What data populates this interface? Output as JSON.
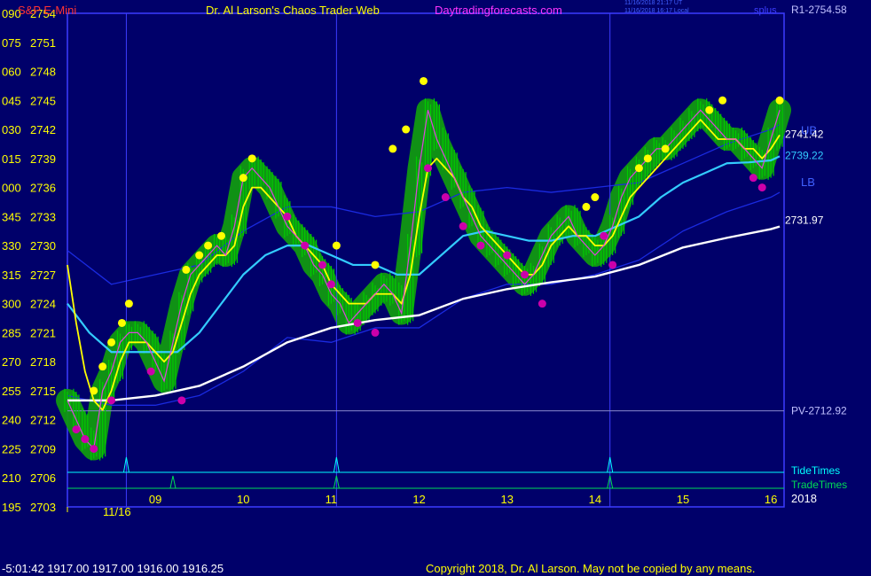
{
  "header": {
    "instrument": "S&P E-Mini",
    "site_title": "Dr. Al Larson's Chaos Trader Web",
    "site_url": "Daytradingforecasts.com",
    "timestamp_ut": "11/16/2018 21:17 UT",
    "timestamp_local": "11/16/2018 16:17 Local",
    "symbol_code": "splus"
  },
  "footer": {
    "status": "-5:01:42  1917.00 1917.00 1916.00 1916.25",
    "copyright": "Copyright 2018, Dr. Al Larson. May not be copied by any means."
  },
  "colors": {
    "background": "#00006a",
    "frame": "#3c3cff",
    "candles": "#00cc00",
    "glow": "#119911",
    "fast_avg": "#ffff00",
    "mid_avg": "#33ccff",
    "slow_avg": "#ffffff",
    "band": "#1a2ae0",
    "highs": "#ffff00",
    "lows": "#cc00aa",
    "tide": "#00ffff",
    "trade": "#00dd55"
  },
  "chart_data": {
    "type": "line",
    "ylim": [
      2703,
      2754
    ],
    "y_ticks": [
      {
        "left": "195",
        "right": "2703",
        "v": 2703
      },
      {
        "left": "210",
        "right": "2706",
        "v": 2706
      },
      {
        "left": "225",
        "right": "2709",
        "v": 2709
      },
      {
        "left": "240",
        "right": "2712",
        "v": 2712
      },
      {
        "left": "255",
        "right": "2715",
        "v": 2715
      },
      {
        "left": "270",
        "right": "2718",
        "v": 2718
      },
      {
        "left": "285",
        "right": "2721",
        "v": 2721
      },
      {
        "left": "300",
        "right": "2724",
        "v": 2724
      },
      {
        "left": "315",
        "right": "2727",
        "v": 2727
      },
      {
        "left": "330",
        "right": "2730",
        "v": 2730
      },
      {
        "left": "345",
        "right": "2733",
        "v": 2733
      },
      {
        "left": "000",
        "right": "2736",
        "v": 2736
      },
      {
        "left": "015",
        "right": "2739",
        "v": 2739
      },
      {
        "left": "030",
        "right": "2742",
        "v": 2742
      },
      {
        "left": "045",
        "right": "2745",
        "v": 2745
      },
      {
        "left": "060",
        "right": "2748",
        "v": 2748
      },
      {
        "left": "075",
        "right": "2751",
        "v": 2751
      },
      {
        "left": "090",
        "right": "2754",
        "v": 2754
      }
    ],
    "xlim": [
      8.0,
      16.15
    ],
    "x_ticks": [
      "09",
      "10",
      "11",
      "12",
      "13",
      "14",
      "15",
      "16"
    ],
    "date_label": "11/16",
    "year_label": "2018",
    "session_lines": [
      8.67,
      11.06,
      14.17
    ],
    "levels": {
      "r1": {
        "label": "R1-2754.58",
        "value": 2754.58
      },
      "pv": {
        "label": "PV-2712.92",
        "value": 2712.92
      },
      "ub": "UB",
      "lb": "LB"
    },
    "last_values": {
      "fast": "2741.42",
      "mid": "2739.22",
      "slow": "2731.97"
    },
    "tide_label": "TideTimes",
    "trade_label": "TradeTimes",
    "tide_spikes": [
      8.67,
      11.06,
      14.17
    ],
    "trade_spikes": [
      9.2,
      11.06,
      14.17
    ],
    "price": {
      "x": [
        8.0,
        8.1,
        8.2,
        8.3,
        8.4,
        8.5,
        8.6,
        8.7,
        8.8,
        8.9,
        9.0,
        9.1,
        9.2,
        9.3,
        9.4,
        9.5,
        9.6,
        9.7,
        9.8,
        9.9,
        10.0,
        10.1,
        10.2,
        10.3,
        10.4,
        10.5,
        10.6,
        10.7,
        10.8,
        10.9,
        11.0,
        11.1,
        11.2,
        11.3,
        11.4,
        11.5,
        11.6,
        11.7,
        11.8,
        11.9,
        12.0,
        12.1,
        12.2,
        12.3,
        12.4,
        12.5,
        12.6,
        12.7,
        12.8,
        12.9,
        13.0,
        13.1,
        13.2,
        13.3,
        13.4,
        13.5,
        13.6,
        13.7,
        13.8,
        13.9,
        14.0,
        14.1,
        14.2,
        14.3,
        14.4,
        14.5,
        14.6,
        14.7,
        14.8,
        14.9,
        15.0,
        15.1,
        15.2,
        15.3,
        15.4,
        15.5,
        15.6,
        15.7,
        15.8,
        15.9,
        16.0,
        16.1
      ],
      "y": [
        2714,
        2712,
        2710,
        2709,
        2715,
        2717,
        2720,
        2721,
        2721,
        2720,
        2718,
        2716,
        2720,
        2724,
        2727,
        2728,
        2729,
        2730,
        2729,
        2732,
        2737,
        2738,
        2737,
        2736,
        2734,
        2732,
        2731,
        2730,
        2728,
        2727,
        2725,
        2724,
        2722,
        2723,
        2724,
        2725,
        2726,
        2725,
        2723,
        2730,
        2738,
        2744,
        2741,
        2739,
        2737,
        2735,
        2733,
        2731,
        2730,
        2729,
        2728,
        2727,
        2726,
        2727,
        2729,
        2731,
        2732,
        2733,
        2731,
        2730,
        2729,
        2730,
        2732,
        2735,
        2737,
        2738,
        2739,
        2740,
        2740,
        2741,
        2742,
        2743,
        2744,
        2743,
        2742,
        2741,
        2741,
        2740,
        2739,
        2738,
        2741,
        2744
      ]
    },
    "series": [
      {
        "key": "fast",
        "x": [
          8.0,
          8.1,
          8.2,
          8.3,
          8.4,
          8.5,
          8.6,
          8.7,
          8.8,
          8.9,
          9.0,
          9.1,
          9.2,
          9.3,
          9.4,
          9.5,
          9.6,
          9.7,
          9.8,
          9.9,
          10.0,
          10.1,
          10.2,
          10.3,
          10.4,
          10.5,
          10.6,
          10.7,
          10.8,
          10.9,
          11.0,
          11.1,
          11.2,
          11.3,
          11.4,
          11.5,
          11.6,
          11.7,
          11.8,
          11.9,
          12.0,
          12.1,
          12.2,
          12.3,
          12.4,
          12.5,
          12.6,
          12.7,
          12.8,
          12.9,
          13.0,
          13.1,
          13.2,
          13.3,
          13.4,
          13.5,
          13.6,
          13.7,
          13.8,
          13.9,
          14.0,
          14.1,
          14.2,
          14.3,
          14.4,
          14.5,
          14.6,
          14.7,
          14.8,
          14.9,
          15.0,
          15.1,
          15.2,
          15.3,
          15.4,
          15.5,
          15.6,
          15.7,
          15.8,
          15.9,
          16.0,
          16.1
        ],
        "y": [
          2728,
          2722,
          2717,
          2714,
          2713,
          2715,
          2718,
          2720,
          2720,
          2720,
          2719,
          2718,
          2719,
          2722,
          2725,
          2727,
          2728,
          2729,
          2729,
          2730,
          2734,
          2736,
          2736,
          2735,
          2734,
          2733,
          2731,
          2730,
          2729,
          2728,
          2726,
          2725,
          2724,
          2724,
          2724,
          2725,
          2725,
          2725,
          2724,
          2727,
          2733,
          2738,
          2739,
          2738,
          2737,
          2735,
          2734,
          2732,
          2731,
          2730,
          2729,
          2728,
          2727,
          2727,
          2728,
          2730,
          2731,
          2732,
          2731,
          2731,
          2730,
          2730,
          2731,
          2733,
          2735,
          2736,
          2737,
          2738,
          2739,
          2740,
          2741,
          2742,
          2743,
          2742,
          2741,
          2741,
          2741,
          2740,
          2740,
          2739,
          2740,
          2741.42
        ]
      },
      {
        "key": "mid",
        "x": [
          8.0,
          8.25,
          8.5,
          8.75,
          9.0,
          9.25,
          9.5,
          9.75,
          10.0,
          10.25,
          10.5,
          10.75,
          11.0,
          11.25,
          11.5,
          11.75,
          12.0,
          12.25,
          12.5,
          12.75,
          13.0,
          13.25,
          13.5,
          13.75,
          14.0,
          14.25,
          14.5,
          14.75,
          15.0,
          15.25,
          15.5,
          15.75,
          16.0,
          16.1
        ],
        "y": [
          2724,
          2721,
          2719,
          2719,
          2719,
          2719,
          2721,
          2724,
          2727,
          2729,
          2730,
          2730,
          2729,
          2728,
          2728,
          2727,
          2727,
          2729,
          2731,
          2731.5,
          2731,
          2730.5,
          2730.5,
          2731,
          2731,
          2732,
          2733,
          2735,
          2736.5,
          2737.5,
          2738.5,
          2738.6,
          2738.8,
          2739.22
        ]
      },
      {
        "key": "slow",
        "x": [
          8.0,
          8.5,
          9.0,
          9.5,
          10.0,
          10.5,
          11.0,
          11.5,
          12.0,
          12.5,
          13.0,
          13.5,
          14.0,
          14.5,
          15.0,
          15.5,
          16.0,
          16.1
        ],
        "y": [
          2714,
          2714,
          2714.5,
          2715.5,
          2717.5,
          2720,
          2721.5,
          2722.3,
          2722.8,
          2724.5,
          2725.5,
          2726.2,
          2726.8,
          2728,
          2729.8,
          2730.8,
          2731.7,
          2731.97
        ]
      },
      {
        "key": "ub",
        "x": [
          8.0,
          8.5,
          9.0,
          9.5,
          10.0,
          10.5,
          11.0,
          11.5,
          12.0,
          12.5,
          13.0,
          13.5,
          14.0,
          14.5,
          15.0,
          15.5,
          16.0,
          16.1
        ],
        "y": [
          2729.5,
          2726,
          2727,
          2728,
          2731.5,
          2734,
          2734,
          2733,
          2733.5,
          2735.5,
          2736,
          2735.5,
          2736,
          2736.5,
          2738.5,
          2740.5,
          2742,
          2742.5
        ]
      },
      {
        "key": "lb",
        "x": [
          8.0,
          8.5,
          9.0,
          9.5,
          10.0,
          10.5,
          11.0,
          11.5,
          12.0,
          12.5,
          13.0,
          13.5,
          14.0,
          14.5,
          15.0,
          15.5,
          16.0,
          16.1
        ],
        "y": [
          2714.5,
          2713.5,
          2713.5,
          2714.5,
          2717,
          2720.5,
          2720,
          2721.5,
          2721.5,
          2724.5,
          2726,
          2726,
          2727,
          2728.5,
          2731.5,
          2733.5,
          2735,
          2735.5
        ]
      }
    ],
    "highs": [
      [
        8.3,
        2715
      ],
      [
        8.4,
        2717.5
      ],
      [
        8.5,
        2720
      ],
      [
        8.62,
        2722
      ],
      [
        8.7,
        2724
      ],
      [
        9.35,
        2727.5
      ],
      [
        9.5,
        2729
      ],
      [
        9.6,
        2730
      ],
      [
        9.75,
        2731
      ],
      [
        10.0,
        2737
      ],
      [
        10.1,
        2739
      ],
      [
        11.06,
        2730
      ],
      [
        11.5,
        2728
      ],
      [
        11.7,
        2740
      ],
      [
        11.85,
        2742
      ],
      [
        12.05,
        2747
      ],
      [
        13.9,
        2734
      ],
      [
        14.0,
        2735
      ],
      [
        14.5,
        2738
      ],
      [
        14.6,
        2739
      ],
      [
        14.8,
        2740
      ],
      [
        15.3,
        2744
      ],
      [
        15.45,
        2745
      ],
      [
        16.1,
        2745
      ]
    ],
    "lows": [
      [
        8.1,
        2711
      ],
      [
        8.2,
        2710
      ],
      [
        8.3,
        2709
      ],
      [
        8.5,
        2714
      ],
      [
        8.95,
        2717
      ],
      [
        9.3,
        2714
      ],
      [
        10.5,
        2733
      ],
      [
        10.7,
        2730
      ],
      [
        10.9,
        2728
      ],
      [
        11.0,
        2726
      ],
      [
        11.3,
        2722
      ],
      [
        11.5,
        2721
      ],
      [
        12.1,
        2738
      ],
      [
        12.3,
        2735
      ],
      [
        12.5,
        2732
      ],
      [
        12.7,
        2730
      ],
      [
        13.0,
        2729
      ],
      [
        13.2,
        2727
      ],
      [
        13.4,
        2724
      ],
      [
        14.1,
        2731
      ],
      [
        14.2,
        2728
      ],
      [
        15.8,
        2737
      ],
      [
        15.9,
        2736
      ]
    ]
  }
}
